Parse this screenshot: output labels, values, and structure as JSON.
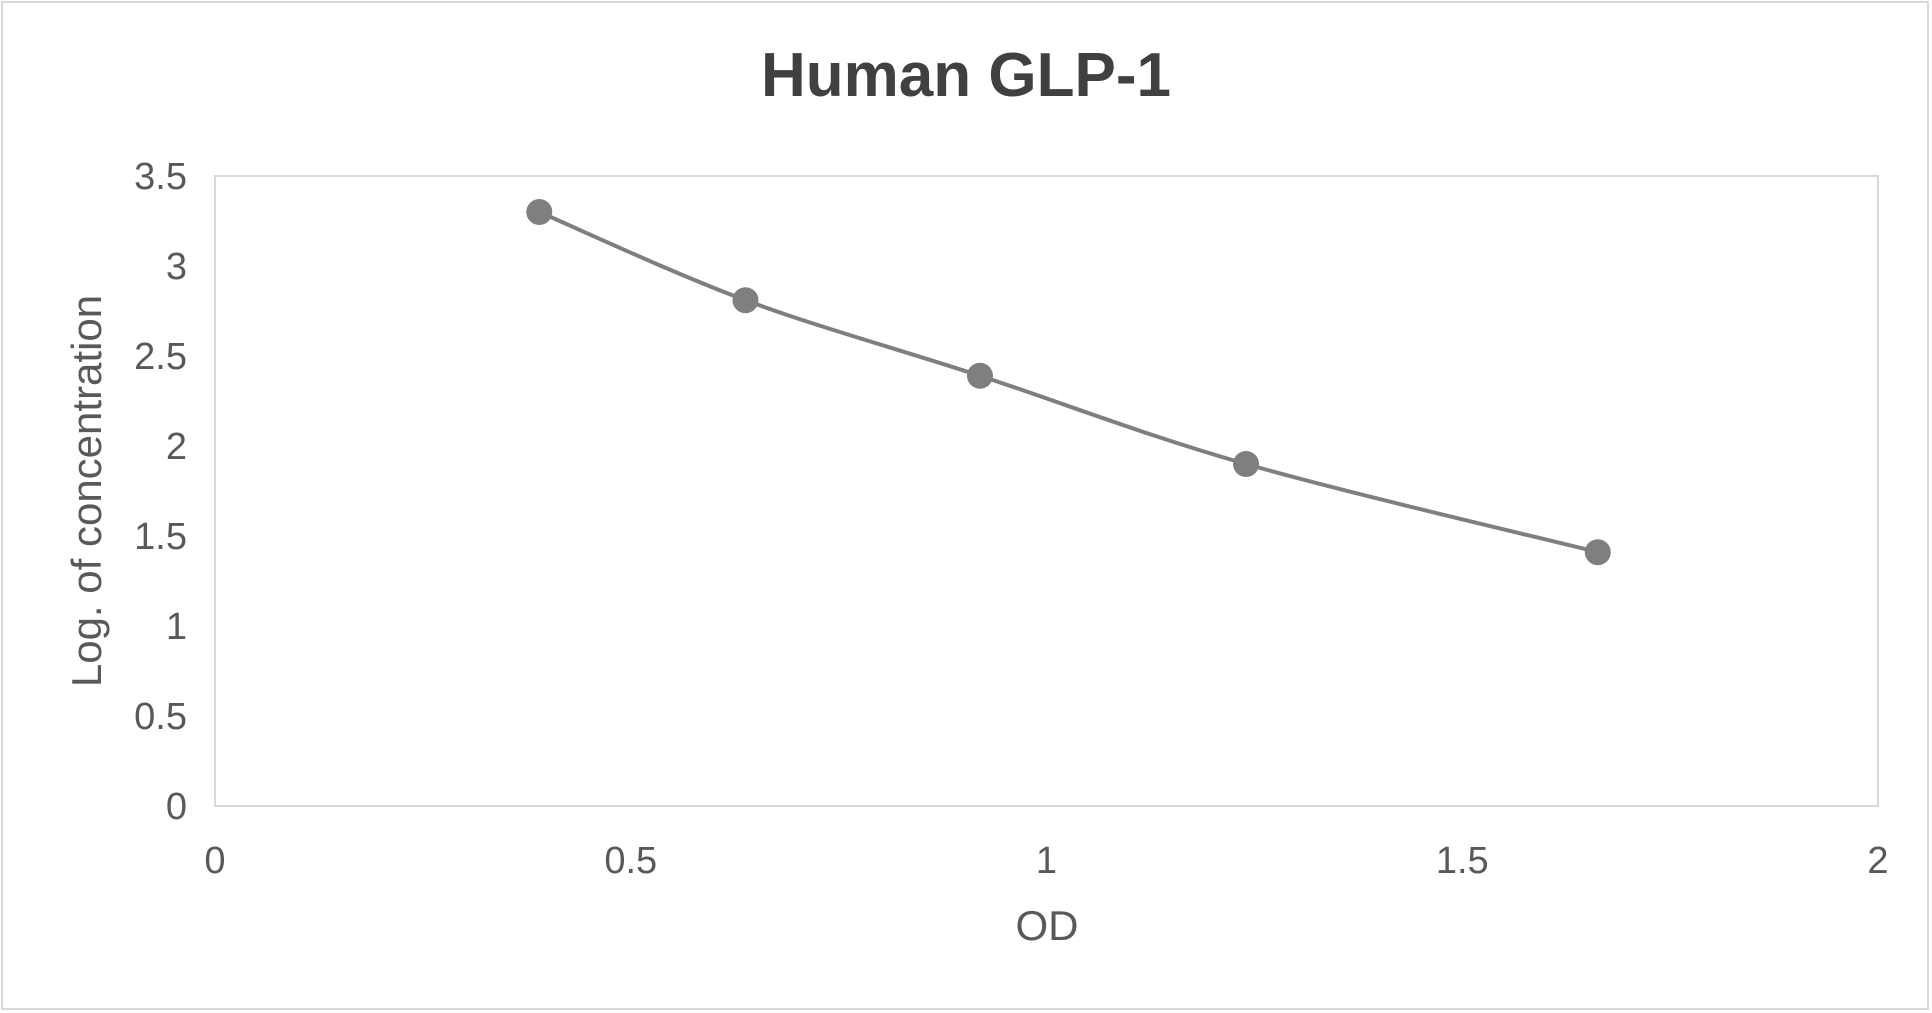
{
  "chart_data": {
    "type": "scatter",
    "title": "Human GLP-1",
    "xlabel": "OD",
    "ylabel": "Log. of concentration",
    "xlim": [
      0,
      2
    ],
    "ylim": [
      0,
      3.5
    ],
    "x_ticks": [
      "0",
      "0.5",
      "1",
      "1.5",
      "2"
    ],
    "y_ticks": [
      "0",
      "0.5",
      "1",
      "1.5",
      "2",
      "2.5",
      "3",
      "3.5"
    ],
    "grid": false,
    "smoothed_line": true,
    "series": [
      {
        "x": [
          0.39,
          0.638,
          0.92,
          1.24,
          1.663
        ],
        "y": [
          3.3,
          2.81,
          2.39,
          1.9,
          1.41
        ]
      }
    ],
    "colors": {
      "series": "#7f7f7f",
      "text": "#595959",
      "title": "#404040",
      "border": "#d9d9d9"
    }
  }
}
